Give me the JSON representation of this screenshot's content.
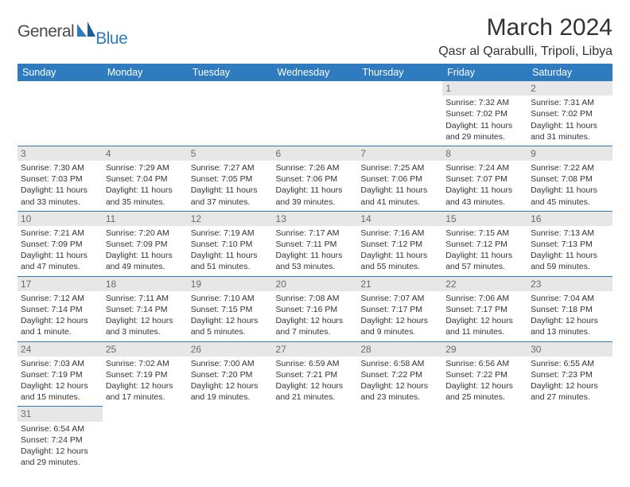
{
  "logo": {
    "general": "General",
    "blue": "Blue"
  },
  "title": "March 2024",
  "location": "Qasr al Qarabulli, Tripoli, Libya",
  "day_headers": [
    "Sunday",
    "Monday",
    "Tuesday",
    "Wednesday",
    "Thursday",
    "Friday",
    "Saturday"
  ],
  "colors": {
    "header_bg": "#2f7bbf",
    "header_fg": "#ffffff",
    "daynum_bg": "#e7e7e7",
    "daynum_fg": "#6a6a6a",
    "border": "#2f7bbf",
    "text": "#333333"
  },
  "weeks": [
    [
      null,
      null,
      null,
      null,
      null,
      {
        "n": "1",
        "sr": "Sunrise: 7:32 AM",
        "ss": "Sunset: 7:02 PM",
        "dl": "Daylight: 11 hours and 29 minutes."
      },
      {
        "n": "2",
        "sr": "Sunrise: 7:31 AM",
        "ss": "Sunset: 7:02 PM",
        "dl": "Daylight: 11 hours and 31 minutes."
      }
    ],
    [
      {
        "n": "3",
        "sr": "Sunrise: 7:30 AM",
        "ss": "Sunset: 7:03 PM",
        "dl": "Daylight: 11 hours and 33 minutes."
      },
      {
        "n": "4",
        "sr": "Sunrise: 7:29 AM",
        "ss": "Sunset: 7:04 PM",
        "dl": "Daylight: 11 hours and 35 minutes."
      },
      {
        "n": "5",
        "sr": "Sunrise: 7:27 AM",
        "ss": "Sunset: 7:05 PM",
        "dl": "Daylight: 11 hours and 37 minutes."
      },
      {
        "n": "6",
        "sr": "Sunrise: 7:26 AM",
        "ss": "Sunset: 7:06 PM",
        "dl": "Daylight: 11 hours and 39 minutes."
      },
      {
        "n": "7",
        "sr": "Sunrise: 7:25 AM",
        "ss": "Sunset: 7:06 PM",
        "dl": "Daylight: 11 hours and 41 minutes."
      },
      {
        "n": "8",
        "sr": "Sunrise: 7:24 AM",
        "ss": "Sunset: 7:07 PM",
        "dl": "Daylight: 11 hours and 43 minutes."
      },
      {
        "n": "9",
        "sr": "Sunrise: 7:22 AM",
        "ss": "Sunset: 7:08 PM",
        "dl": "Daylight: 11 hours and 45 minutes."
      }
    ],
    [
      {
        "n": "10",
        "sr": "Sunrise: 7:21 AM",
        "ss": "Sunset: 7:09 PM",
        "dl": "Daylight: 11 hours and 47 minutes."
      },
      {
        "n": "11",
        "sr": "Sunrise: 7:20 AM",
        "ss": "Sunset: 7:09 PM",
        "dl": "Daylight: 11 hours and 49 minutes."
      },
      {
        "n": "12",
        "sr": "Sunrise: 7:19 AM",
        "ss": "Sunset: 7:10 PM",
        "dl": "Daylight: 11 hours and 51 minutes."
      },
      {
        "n": "13",
        "sr": "Sunrise: 7:17 AM",
        "ss": "Sunset: 7:11 PM",
        "dl": "Daylight: 11 hours and 53 minutes."
      },
      {
        "n": "14",
        "sr": "Sunrise: 7:16 AM",
        "ss": "Sunset: 7:12 PM",
        "dl": "Daylight: 11 hours and 55 minutes."
      },
      {
        "n": "15",
        "sr": "Sunrise: 7:15 AM",
        "ss": "Sunset: 7:12 PM",
        "dl": "Daylight: 11 hours and 57 minutes."
      },
      {
        "n": "16",
        "sr": "Sunrise: 7:13 AM",
        "ss": "Sunset: 7:13 PM",
        "dl": "Daylight: 11 hours and 59 minutes."
      }
    ],
    [
      {
        "n": "17",
        "sr": "Sunrise: 7:12 AM",
        "ss": "Sunset: 7:14 PM",
        "dl": "Daylight: 12 hours and 1 minute."
      },
      {
        "n": "18",
        "sr": "Sunrise: 7:11 AM",
        "ss": "Sunset: 7:14 PM",
        "dl": "Daylight: 12 hours and 3 minutes."
      },
      {
        "n": "19",
        "sr": "Sunrise: 7:10 AM",
        "ss": "Sunset: 7:15 PM",
        "dl": "Daylight: 12 hours and 5 minutes."
      },
      {
        "n": "20",
        "sr": "Sunrise: 7:08 AM",
        "ss": "Sunset: 7:16 PM",
        "dl": "Daylight: 12 hours and 7 minutes."
      },
      {
        "n": "21",
        "sr": "Sunrise: 7:07 AM",
        "ss": "Sunset: 7:17 PM",
        "dl": "Daylight: 12 hours and 9 minutes."
      },
      {
        "n": "22",
        "sr": "Sunrise: 7:06 AM",
        "ss": "Sunset: 7:17 PM",
        "dl": "Daylight: 12 hours and 11 minutes."
      },
      {
        "n": "23",
        "sr": "Sunrise: 7:04 AM",
        "ss": "Sunset: 7:18 PM",
        "dl": "Daylight: 12 hours and 13 minutes."
      }
    ],
    [
      {
        "n": "24",
        "sr": "Sunrise: 7:03 AM",
        "ss": "Sunset: 7:19 PM",
        "dl": "Daylight: 12 hours and 15 minutes."
      },
      {
        "n": "25",
        "sr": "Sunrise: 7:02 AM",
        "ss": "Sunset: 7:19 PM",
        "dl": "Daylight: 12 hours and 17 minutes."
      },
      {
        "n": "26",
        "sr": "Sunrise: 7:00 AM",
        "ss": "Sunset: 7:20 PM",
        "dl": "Daylight: 12 hours and 19 minutes."
      },
      {
        "n": "27",
        "sr": "Sunrise: 6:59 AM",
        "ss": "Sunset: 7:21 PM",
        "dl": "Daylight: 12 hours and 21 minutes."
      },
      {
        "n": "28",
        "sr": "Sunrise: 6:58 AM",
        "ss": "Sunset: 7:22 PM",
        "dl": "Daylight: 12 hours and 23 minutes."
      },
      {
        "n": "29",
        "sr": "Sunrise: 6:56 AM",
        "ss": "Sunset: 7:22 PM",
        "dl": "Daylight: 12 hours and 25 minutes."
      },
      {
        "n": "30",
        "sr": "Sunrise: 6:55 AM",
        "ss": "Sunset: 7:23 PM",
        "dl": "Daylight: 12 hours and 27 minutes."
      }
    ],
    [
      {
        "n": "31",
        "sr": "Sunrise: 6:54 AM",
        "ss": "Sunset: 7:24 PM",
        "dl": "Daylight: 12 hours and 29 minutes."
      },
      null,
      null,
      null,
      null,
      null,
      null
    ]
  ]
}
